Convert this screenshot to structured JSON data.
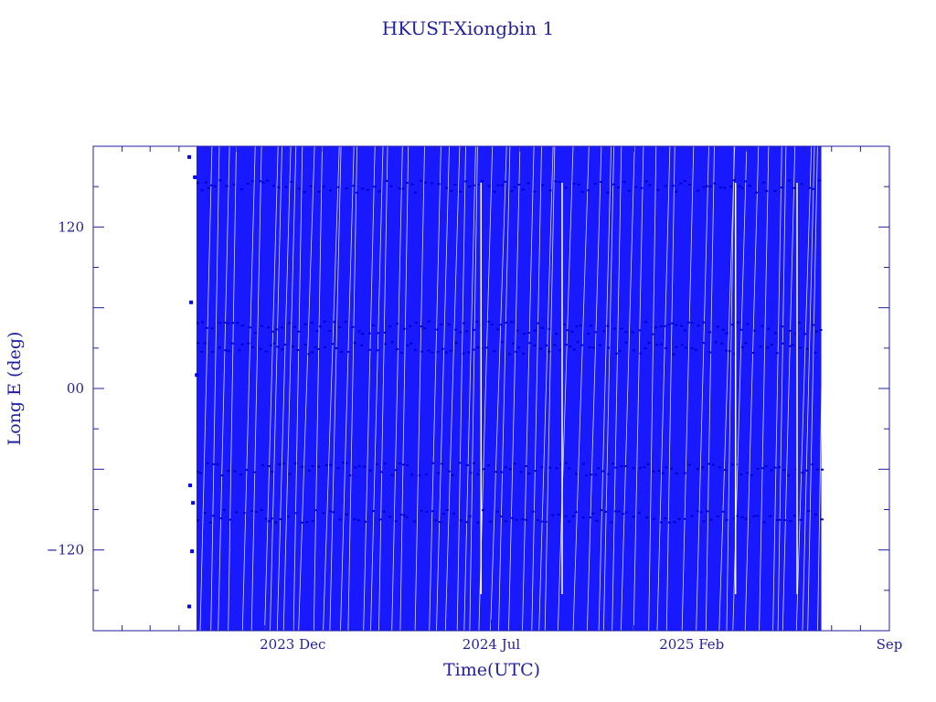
{
  "chart_data": {
    "type": "line",
    "title": "HKUST-Xiongbin 1",
    "xlabel": "Time(UTC)",
    "ylabel": "Long E (deg)",
    "ylim": [
      -180,
      180
    ],
    "yticks": [
      {
        "value": 120,
        "label": "120"
      },
      {
        "value": 0,
        "label": "00"
      },
      {
        "value": -120,
        "label": "-120"
      }
    ],
    "xticks": [
      {
        "value": "2023-12-01",
        "label": "2023 Dec"
      },
      {
        "value": "2024-07-01",
        "label": "2024 Jul"
      },
      {
        "value": "2025-02-01",
        "label": "2025 Feb"
      },
      {
        "value": "2025-09-01",
        "label": "Sep"
      }
    ],
    "xlim": [
      "2023-05-01",
      "2025-09-01"
    ],
    "series": [
      {
        "color": "#0000ff",
        "description": "sub-satellite longitude, wrapping -180..180, dense from ~2023 Aug to ~2025 Jun",
        "x_start": "2023-08-10",
        "x_end": "2025-06-20",
        "values": [
          {
            "x": "2023-08-12",
            "y": 172
          },
          {
            "x": "2023-08-12",
            "y": -162
          },
          {
            "x": "2023-08-13",
            "y": -72
          },
          {
            "x": "2023-08-14",
            "y": 64
          },
          {
            "x": "2023-08-15",
            "y": -121
          },
          {
            "x": "2023-08-16",
            "y": -85
          },
          {
            "x": "2023-08-18",
            "y": 157
          },
          {
            "x": "2023-08-20",
            "y": 10
          }
        ]
      }
    ],
    "grid": false,
    "colors": {
      "axis": "#1f1f9f",
      "series": "#0000ff"
    }
  }
}
